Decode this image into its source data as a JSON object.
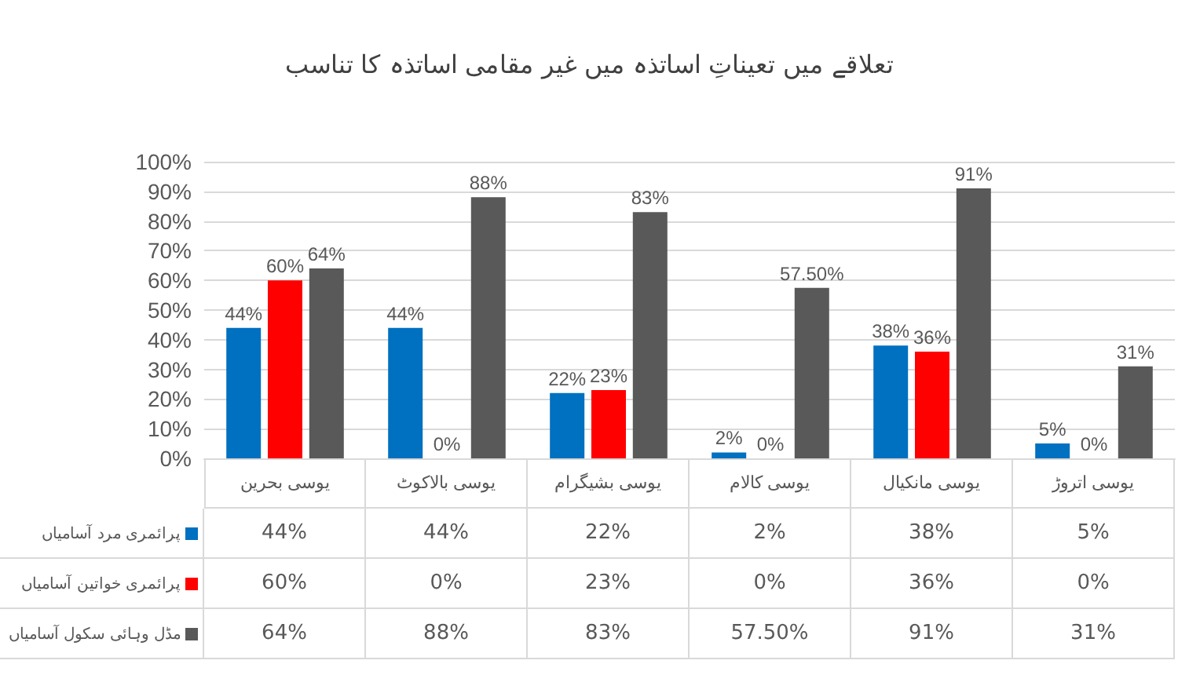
{
  "chart_data": {
    "type": "bar",
    "title": "تعلاقے میں تعیناتِ اساتذہ میں غیر مقامی اساتذہ کا تناسب",
    "categories": [
      "یوسی بحرین",
      "یوسی بالاکوٹ",
      "یوسی بشیگرام",
      "یوسی کالام",
      "یوسی مانکیال",
      "یوسی اتروڑ"
    ],
    "series": [
      {
        "name": "پرائمری مرد آسامیاں",
        "color": "#0070c0",
        "values": [
          44,
          44,
          22,
          2,
          38,
          5
        ],
        "value_labels": [
          "44%",
          "44%",
          "22%",
          "2%",
          "38%",
          "5%"
        ]
      },
      {
        "name": "پرائمری خواتین آسامیاں",
        "color": "#ff0000",
        "values": [
          60,
          0,
          23,
          0,
          36,
          0
        ],
        "value_labels": [
          "60%",
          "0%",
          "23%",
          "0%",
          "36%",
          "0%"
        ]
      },
      {
        "name": "مڈل وہائی سکول آسامیاں",
        "color": "#595959",
        "values": [
          64,
          88,
          83,
          57.5,
          91,
          31
        ],
        "value_labels": [
          "64%",
          "88%",
          "83%",
          "57.50%",
          "91%",
          "31%"
        ]
      }
    ],
    "ylim": [
      0,
      100
    ],
    "yticks": [
      {
        "value": 0,
        "label": "0%"
      },
      {
        "value": 10,
        "label": "10%"
      },
      {
        "value": 20,
        "label": "20%"
      },
      {
        "value": 30,
        "label": "30%"
      },
      {
        "value": 40,
        "label": "40%"
      },
      {
        "value": 50,
        "label": "50%"
      },
      {
        "value": 60,
        "label": "60%"
      },
      {
        "value": 70,
        "label": "70%"
      },
      {
        "value": 80,
        "label": "80%"
      },
      {
        "value": 90,
        "label": "90%"
      },
      {
        "value": 100,
        "label": "100%"
      }
    ],
    "grid": "y",
    "legend": "bottom left"
  }
}
